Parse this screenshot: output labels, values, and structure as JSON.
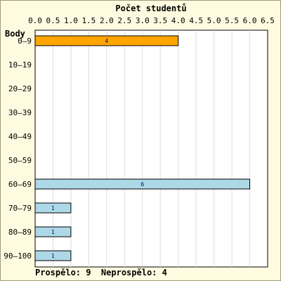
{
  "chart_data": {
    "type": "bar",
    "orientation": "horizontal",
    "title": "Počet studentů",
    "ylabel": "Body",
    "xlabel": "",
    "categories": [
      "0–9",
      "10–19",
      "20–29",
      "30–39",
      "40–49",
      "50–59",
      "60–69",
      "70–79",
      "80–89",
      "90–100"
    ],
    "series": [
      {
        "values": [
          4,
          0,
          0,
          0,
          0,
          0,
          6,
          1,
          1,
          1
        ],
        "labels": [
          "4",
          "",
          "",
          "",
          "",
          "",
          "6",
          "1",
          "1",
          "1"
        ]
      }
    ],
    "bar_colors": [
      "#ffa500",
      "#add8e6",
      "#add8e6",
      "#add8e6",
      "#add8e6",
      "#add8e6",
      "#add8e6",
      "#add8e6",
      "#add8e6",
      "#add8e6"
    ],
    "xlim": [
      0,
      6.5
    ],
    "xticks": [
      "0.0",
      "0.5",
      "1.0",
      "1.5",
      "2.0",
      "2.5",
      "3.0",
      "3.5",
      "4.0",
      "4.5",
      "5.0",
      "5.5",
      "6.0",
      "6.5"
    ],
    "grid": true,
    "footer": "Prospělo: 9  Neprospělo: 4",
    "colors": {
      "background": "#fffbe0",
      "frame": "#a09878",
      "plot_background": "#ffffff",
      "grid": "#dddddd",
      "bar_border": "#000000",
      "label_color": "#000080"
    }
  }
}
